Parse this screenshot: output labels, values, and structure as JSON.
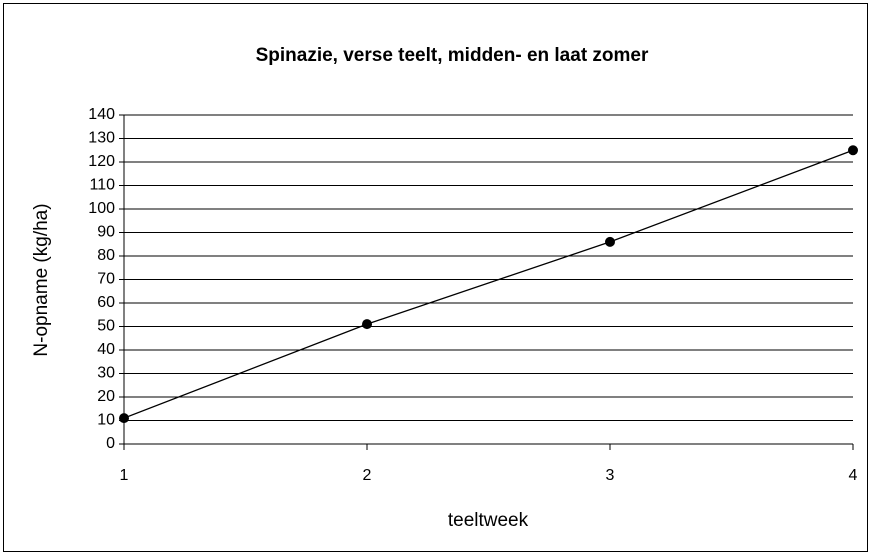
{
  "chart_data": {
    "type": "line",
    "title": "Spinazie, verse teelt, midden- en laat zomer",
    "x_label": "teeltweek",
    "y_label": "N-opname (kg/ha)",
    "x": [
      1,
      2,
      3,
      4
    ],
    "values": [
      11,
      51,
      86,
      125
    ],
    "color": "#000000",
    "xlim": [
      1,
      4
    ],
    "xticks": [
      1,
      2,
      3,
      4
    ],
    "ylim": [
      0,
      140
    ],
    "yticks": [
      0,
      10,
      20,
      30,
      40,
      50,
      60,
      70,
      80,
      90,
      100,
      110,
      120,
      130,
      140
    ],
    "grid": true
  }
}
